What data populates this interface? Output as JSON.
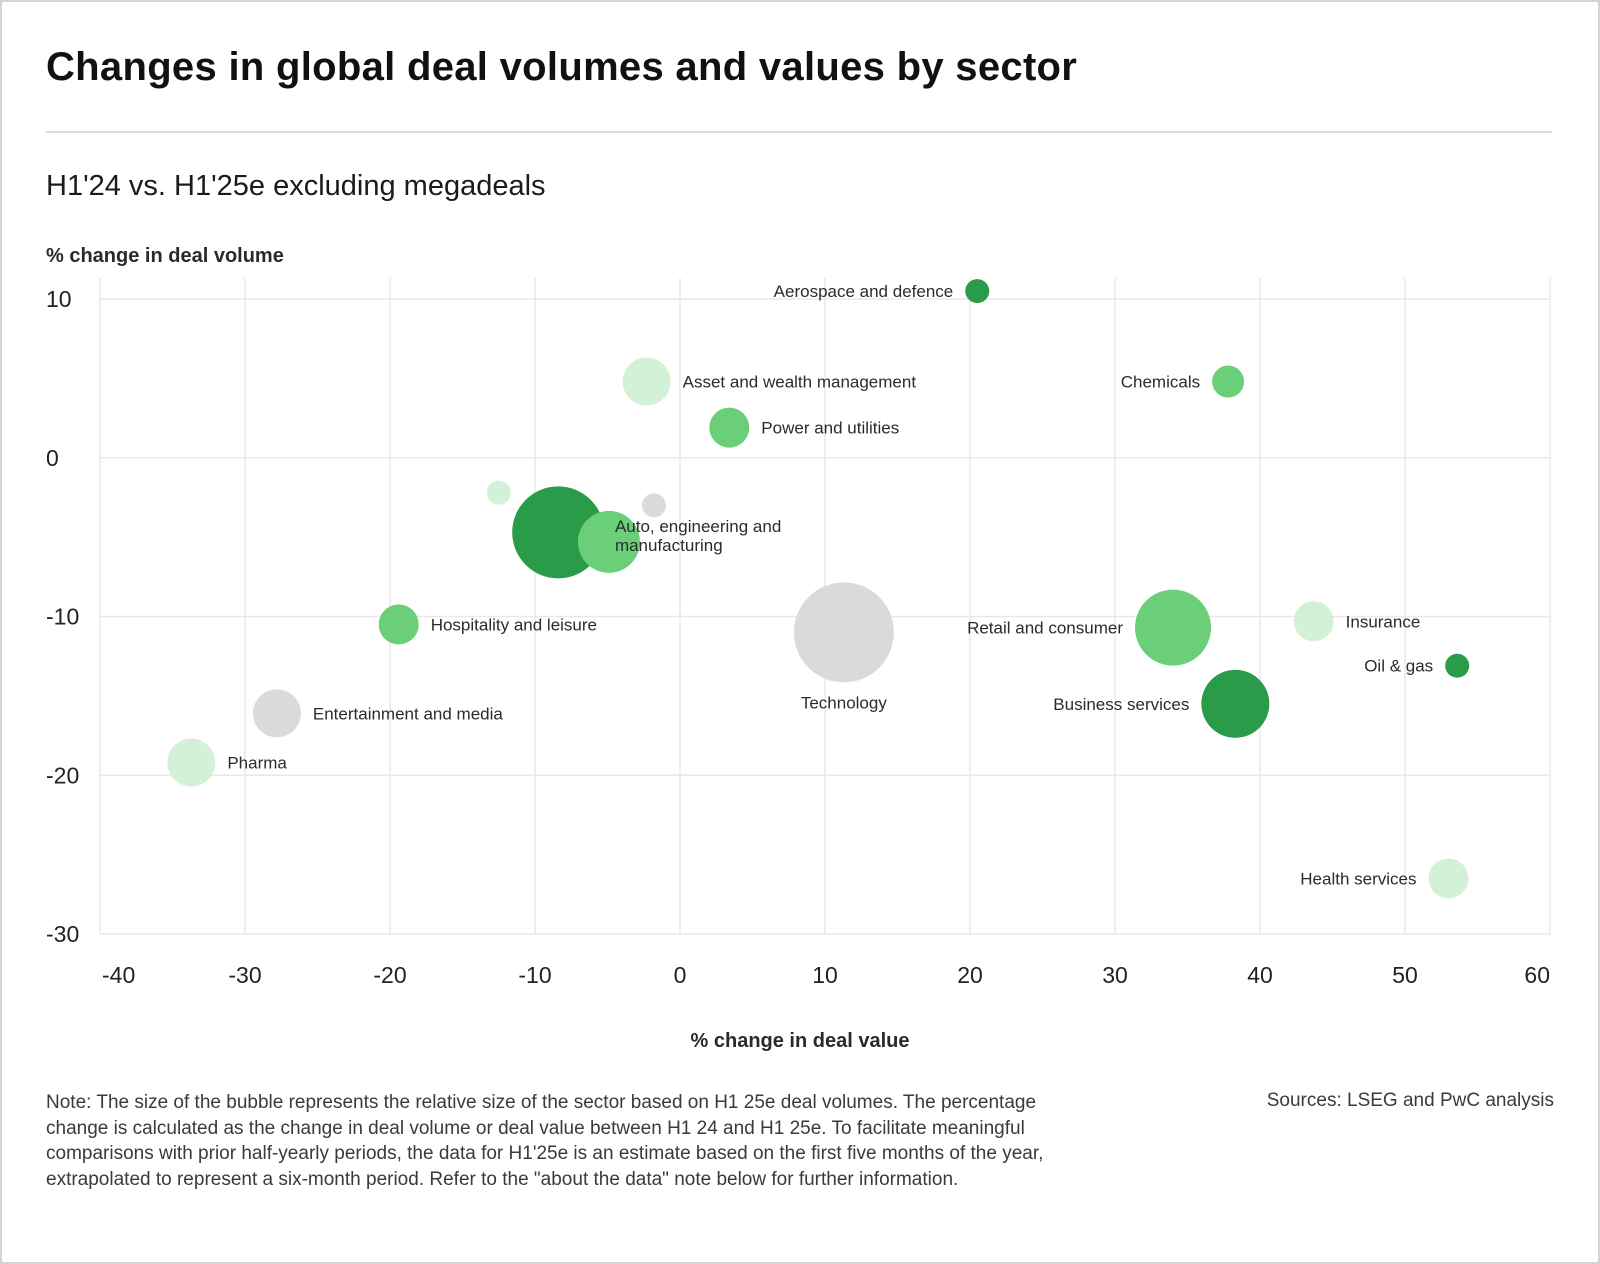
{
  "title": "Changes in global deal volumes and values by sector",
  "subtitle": "H1'24 vs. H1'25e excluding megadeals",
  "note": "Note: The size of the bubble represents the relative size of the sector based on H1 25e deal volumes. The percentage change is calculated as the change in deal volume or deal value between H1 24 and H1 25e. To facilitate meaningful comparisons with prior half-yearly periods, the data for H1'25e is an estimate based on the first five months of the year, extrapolated to represent a six-month period. Refer to the \"about the data\" note below for further information.",
  "sources": "Sources: LSEG and PwC analysis",
  "colors": {
    "dark_green": "#2a9b48",
    "mid_green": "#6bcf7a",
    "light_green": "#d3f1d6",
    "grey": "#dadada",
    "grid": "#e8e8e8"
  },
  "chart_data": {
    "type": "scatter",
    "xlabel": "% change in deal value",
    "ylabel": "% change in deal volume",
    "xlim": [
      -40,
      60
    ],
    "ylim": [
      -30,
      10
    ],
    "xticks": [
      "-40",
      "-30",
      "-20",
      "-10",
      "0",
      "10",
      "20",
      "30",
      "40",
      "50",
      "60"
    ],
    "yticks": [
      "10",
      "0",
      "-10",
      "-20",
      "-30"
    ],
    "grid": true,
    "bubble_size_meaning": "relative size of the sector based on H1 25e deal volumes",
    "points": [
      {
        "label": "Aerospace and defence",
        "x": 20.5,
        "y": 10.5,
        "size": 12,
        "color": "dark_green"
      },
      {
        "label": "Asset and wealth management",
        "x": -2.3,
        "y": 4.8,
        "size": 24,
        "color": "light_green"
      },
      {
        "label": "Chemicals",
        "x": 37.8,
        "y": 4.8,
        "size": 16,
        "color": "mid_green"
      },
      {
        "label": "Power and utilities",
        "x": 3.4,
        "y": 1.9,
        "size": 20,
        "color": "mid_green"
      },
      {
        "label": "",
        "x": -12.5,
        "y": -2.2,
        "size": 12,
        "color": "light_green"
      },
      {
        "label": "",
        "x": -1.8,
        "y": -3.0,
        "size": 12,
        "color": "grey"
      },
      {
        "label": "",
        "x": -8.4,
        "y": -4.7,
        "size": 46,
        "color": "dark_green"
      },
      {
        "label": "Auto, engineering and manufacturing",
        "x": -4.9,
        "y": -5.3,
        "size": 31,
        "color": "mid_green"
      },
      {
        "label": "Hospitality and leisure",
        "x": -19.4,
        "y": -10.5,
        "size": 20,
        "color": "mid_green"
      },
      {
        "label": "Technology",
        "x": 11.3,
        "y": -11.0,
        "size": 50,
        "color": "grey"
      },
      {
        "label": "Retail and consumer",
        "x": 34.0,
        "y": -10.7,
        "size": 38,
        "color": "mid_green"
      },
      {
        "label": "Insurance",
        "x": 43.7,
        "y": -10.3,
        "size": 20,
        "color": "light_green"
      },
      {
        "label": "Oil & gas",
        "x": 53.6,
        "y": -13.1,
        "size": 12,
        "color": "dark_green"
      },
      {
        "label": "Business services",
        "x": 38.3,
        "y": -15.5,
        "size": 34,
        "color": "dark_green"
      },
      {
        "label": "Entertainment and media",
        "x": -27.8,
        "y": -16.1,
        "size": 24,
        "color": "grey"
      },
      {
        "label": "Pharma",
        "x": -33.7,
        "y": -19.2,
        "size": 24,
        "color": "light_green"
      },
      {
        "label": "Health services",
        "x": 53.0,
        "y": -26.5,
        "size": 20,
        "color": "light_green"
      }
    ]
  }
}
